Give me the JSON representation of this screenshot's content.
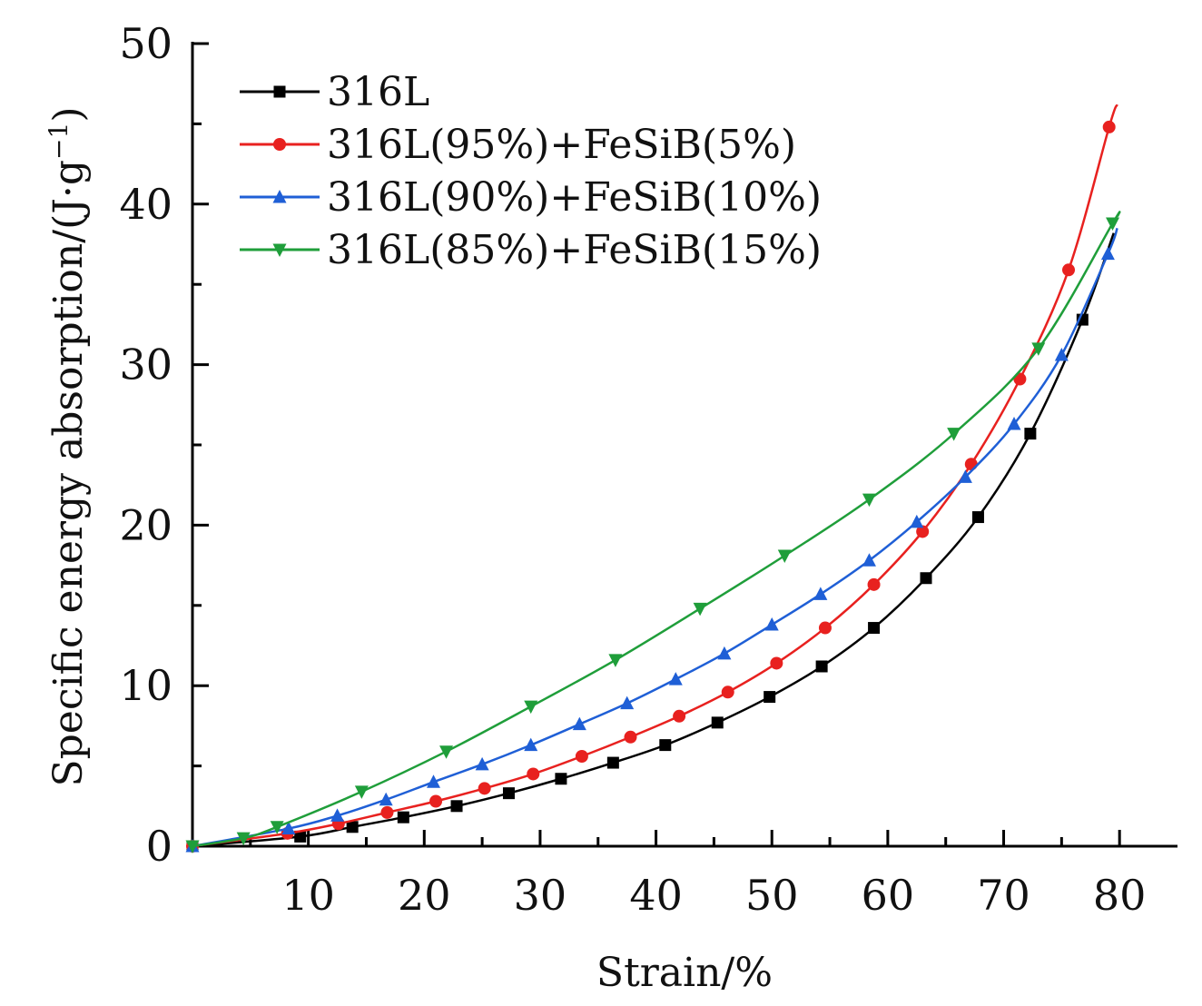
{
  "chart_data": {
    "type": "line",
    "title": "",
    "xlabel": "Strain/%",
    "ylabel_main": "Specific energy absorption/(J",
    "ylabel_dot": "·",
    "ylabel_unit": "g",
    "ylabel_sup": "−1",
    "ylabel_close": ")",
    "xlim": [
      0,
      85
    ],
    "ylim": [
      0,
      50
    ],
    "xticks": [
      10,
      20,
      30,
      40,
      50,
      60,
      70,
      80
    ],
    "yticks": [
      0,
      10,
      20,
      30,
      40,
      50
    ],
    "grid": false,
    "legend_position": "top-left",
    "series": [
      {
        "name": "316L",
        "color": "#000000",
        "marker": "square",
        "x": [
          0,
          9.3,
          13.8,
          18.2,
          22.8,
          27.3,
          31.8,
          36.3,
          40.8,
          45.3,
          49.8,
          54.3,
          58.8,
          63.3,
          67.8,
          72.3,
          76.8,
          79.5
        ],
        "y": [
          0,
          0.6,
          1.2,
          1.8,
          2.5,
          3.3,
          4.2,
          5.2,
          6.3,
          7.7,
          9.3,
          11.2,
          13.6,
          16.7,
          20.5,
          25.7,
          32.8,
          38.2
        ]
      },
      {
        "name": "316L(95%)+FeSiB(5%)",
        "color": "#e8211f",
        "marker": "circle",
        "x": [
          0,
          8.2,
          12.6,
          16.8,
          21.0,
          25.2,
          29.4,
          33.6,
          37.8,
          42.0,
          46.2,
          50.4,
          54.6,
          58.8,
          63.0,
          67.2,
          71.4,
          75.6,
          79.1,
          79.8
        ],
        "y": [
          0,
          0.8,
          1.4,
          2.1,
          2.8,
          3.6,
          4.5,
          5.6,
          6.8,
          8.1,
          9.6,
          11.4,
          13.6,
          16.3,
          19.6,
          23.8,
          29.1,
          35.9,
          44.8,
          46.2
        ]
      },
      {
        "name": "316L(90%)+FeSiB(10%)",
        "color": "#1f5fd6",
        "marker": "triangle-up",
        "x": [
          0,
          8.3,
          12.5,
          16.7,
          20.8,
          25.0,
          29.2,
          33.4,
          37.5,
          41.7,
          45.9,
          50.0,
          54.2,
          58.4,
          62.5,
          66.7,
          70.9,
          75.0,
          79.0,
          79.8
        ],
        "y": [
          0,
          1.1,
          1.9,
          2.9,
          4.0,
          5.1,
          6.3,
          7.6,
          8.9,
          10.4,
          12.0,
          13.8,
          15.7,
          17.8,
          20.2,
          23.0,
          26.3,
          30.6,
          36.9,
          38.5
        ]
      },
      {
        "name": "316L(85%)+FeSiB(15%)",
        "color": "#1f9e3a",
        "marker": "triangle-down",
        "x": [
          0,
          4.4,
          7.3,
          14.6,
          21.9,
          29.2,
          36.5,
          43.8,
          51.1,
          58.4,
          65.7,
          73.0,
          79.4,
          79.8
        ],
        "y": [
          0,
          0.5,
          1.2,
          3.4,
          5.9,
          8.7,
          11.6,
          14.8,
          18.1,
          21.6,
          25.7,
          31.0,
          38.8,
          39.2
        ]
      }
    ]
  }
}
